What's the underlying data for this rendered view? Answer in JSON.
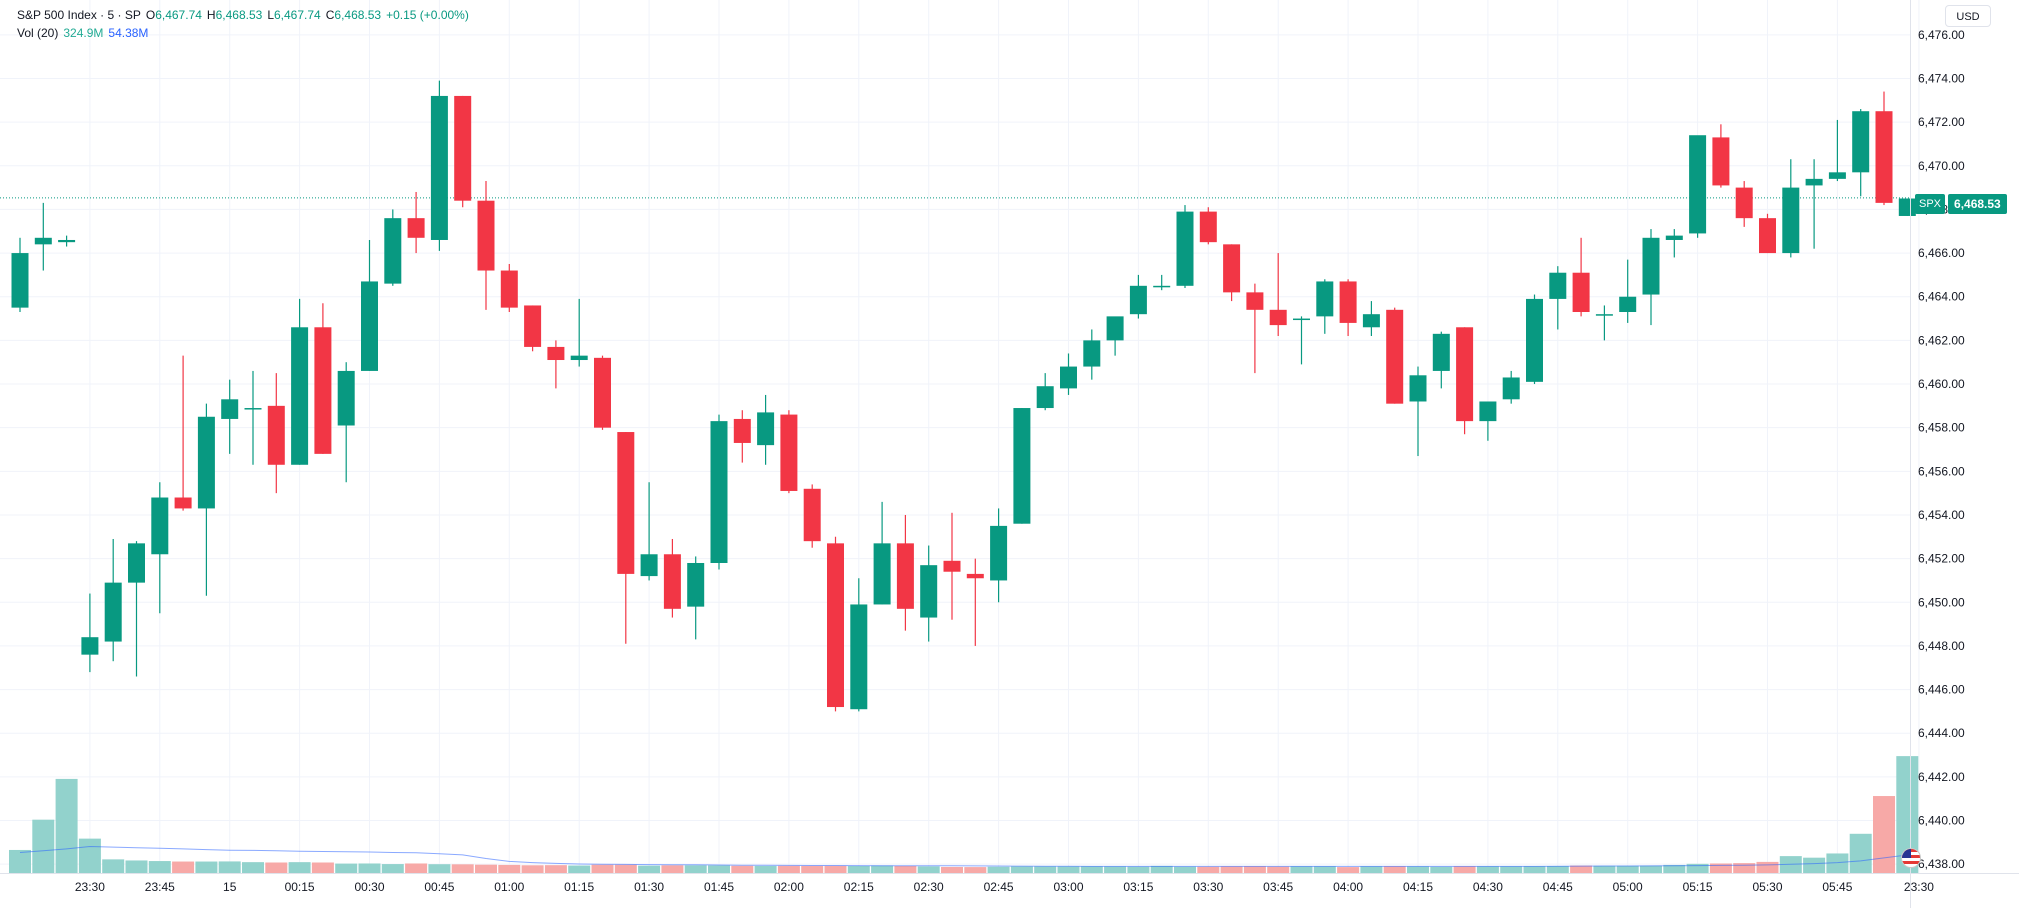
{
  "legend": {
    "title": "S&P 500 Index · 5 · SP",
    "o_label": "O",
    "o_value": "6,467.74",
    "h_label": "H",
    "h_value": "6,468.53",
    "l_label": "L",
    "l_value": "6,467.74",
    "c_label": "C",
    "c_value": "6,468.53",
    "change": "+0.15 (+0.00%)",
    "vol_label": "Vol (20)",
    "vol_value": "324.9M",
    "vol_ma": "54.38M"
  },
  "currency": "USD",
  "last_price": {
    "symbol": "SPX",
    "value": "6,468.53"
  },
  "colors": {
    "up": "#089981",
    "down": "#f23645",
    "vol_up": "#92d2cc",
    "vol_down": "#f7a9a7",
    "vol_ma": "#2962ff"
  },
  "chart_data": {
    "type": "candlestick",
    "y_ticks": [
      "6,438.00",
      "6,440.00",
      "6,442.00",
      "6,444.00",
      "6,446.00",
      "6,448.00",
      "6,450.00",
      "6,452.00",
      "6,454.00",
      "6,456.00",
      "6,458.00",
      "6,460.00",
      "6,462.00",
      "6,464.00",
      "6,466.00",
      "6,468.00",
      "6,470.00",
      "6,472.00",
      "6,474.00",
      "6,476.00"
    ],
    "ylim": [
      6437,
      6477
    ],
    "x_ticks": [
      "23:30",
      "23:45",
      "15",
      "00:15",
      "00:30",
      "00:45",
      "01:00",
      "01:15",
      "01:30",
      "01:45",
      "02:00",
      "02:15",
      "02:30",
      "02:45",
      "03:00",
      "03:15",
      "03:30",
      "03:45",
      "04:00",
      "04:15",
      "04:30",
      "04:45",
      "05:00",
      "05:15",
      "05:30",
      "05:45",
      "23:30"
    ],
    "x_tick_index": [
      3,
      6,
      9,
      12,
      15,
      18,
      21,
      24,
      27,
      30,
      33,
      36,
      39,
      42,
      45,
      48,
      51,
      54,
      57,
      60,
      63,
      66,
      69,
      72,
      75,
      78,
      81.5
    ],
    "last_price_line": 6468.53,
    "candles": [
      {
        "o": 6463.5,
        "h": 6466.7,
        "l": 6463.3,
        "c": 6466.0
      },
      {
        "o": 6466.4,
        "h": 6468.3,
        "l": 6465.2,
        "c": 6466.7
      },
      {
        "o": 6466.5,
        "h": 6466.8,
        "l": 6466.3,
        "c": 6466.6
      },
      {
        "o": 6447.6,
        "h": 6450.4,
        "l": 6446.8,
        "c": 6448.4
      },
      {
        "o": 6448.2,
        "h": 6452.9,
        "l": 6447.3,
        "c": 6450.9
      },
      {
        "o": 6450.9,
        "h": 6452.8,
        "l": 6446.6,
        "c": 6452.7
      },
      {
        "o": 6452.2,
        "h": 6455.5,
        "l": 6449.5,
        "c": 6454.8
      },
      {
        "o": 6454.8,
        "h": 6461.3,
        "l": 6454.2,
        "c": 6454.3
      },
      {
        "o": 6454.3,
        "h": 6459.1,
        "l": 6450.3,
        "c": 6458.5
      },
      {
        "o": 6458.4,
        "h": 6460.2,
        "l": 6456.8,
        "c": 6459.3
      },
      {
        "o": 6458.9,
        "h": 6460.6,
        "l": 6456.3,
        "c": 6458.9
      },
      {
        "o": 6459.0,
        "h": 6460.5,
        "l": 6455.0,
        "c": 6456.3
      },
      {
        "o": 6456.3,
        "h": 6463.9,
        "l": 6456.3,
        "c": 6462.6
      },
      {
        "o": 6462.6,
        "h": 6463.7,
        "l": 6456.8,
        "c": 6456.8
      },
      {
        "o": 6458.1,
        "h": 6461.0,
        "l": 6455.5,
        "c": 6460.6
      },
      {
        "o": 6460.6,
        "h": 6466.6,
        "l": 6460.6,
        "c": 6464.7
      },
      {
        "o": 6464.6,
        "h": 6468.0,
        "l": 6464.5,
        "c": 6467.6
      },
      {
        "o": 6467.6,
        "h": 6468.8,
        "l": 6466.0,
        "c": 6466.7
      },
      {
        "o": 6466.6,
        "h": 6473.9,
        "l": 6466.1,
        "c": 6473.2
      },
      {
        "o": 6473.2,
        "h": 6473.2,
        "l": 6468.1,
        "c": 6468.4
      },
      {
        "o": 6468.4,
        "h": 6469.3,
        "l": 6463.4,
        "c": 6465.2
      },
      {
        "o": 6465.2,
        "h": 6465.5,
        "l": 6463.3,
        "c": 6463.5
      },
      {
        "o": 6463.6,
        "h": 6463.6,
        "l": 6461.5,
        "c": 6461.7
      },
      {
        "o": 6461.7,
        "h": 6462.0,
        "l": 6459.8,
        "c": 6461.1
      },
      {
        "o": 6461.1,
        "h": 6463.9,
        "l": 6460.8,
        "c": 6461.3
      },
      {
        "o": 6461.2,
        "h": 6461.3,
        "l": 6457.9,
        "c": 6458.0
      },
      {
        "o": 6457.8,
        "h": 6457.8,
        "l": 6448.1,
        "c": 6451.3
      },
      {
        "o": 6451.2,
        "h": 6455.5,
        "l": 6451.0,
        "c": 6452.2
      },
      {
        "o": 6452.2,
        "h": 6452.9,
        "l": 6449.3,
        "c": 6449.7
      },
      {
        "o": 6449.8,
        "h": 6452.1,
        "l": 6448.3,
        "c": 6451.8
      },
      {
        "o": 6451.8,
        "h": 6458.6,
        "l": 6451.5,
        "c": 6458.3
      },
      {
        "o": 6458.4,
        "h": 6458.8,
        "l": 6456.4,
        "c": 6457.3
      },
      {
        "o": 6457.2,
        "h": 6459.5,
        "l": 6456.3,
        "c": 6458.7
      },
      {
        "o": 6458.6,
        "h": 6458.8,
        "l": 6455.0,
        "c": 6455.1
      },
      {
        "o": 6455.2,
        "h": 6455.4,
        "l": 6452.5,
        "c": 6452.8
      },
      {
        "o": 6452.7,
        "h": 6453.0,
        "l": 6445.0,
        "c": 6445.2
      },
      {
        "o": 6445.1,
        "h": 6451.1,
        "l": 6445.0,
        "c": 6449.9
      },
      {
        "o": 6449.9,
        "h": 6454.6,
        "l": 6449.9,
        "c": 6452.7
      },
      {
        "o": 6452.7,
        "h": 6454.0,
        "l": 6448.7,
        "c": 6449.7
      },
      {
        "o": 6449.3,
        "h": 6452.6,
        "l": 6448.2,
        "c": 6451.7
      },
      {
        "o": 6451.9,
        "h": 6454.1,
        "l": 6449.2,
        "c": 6451.4
      },
      {
        "o": 6451.3,
        "h": 6452.0,
        "l": 6448.0,
        "c": 6451.1
      },
      {
        "o": 6451.0,
        "h": 6454.3,
        "l": 6450.0,
        "c": 6453.5
      },
      {
        "o": 6453.6,
        "h": 6458.9,
        "l": 6453.6,
        "c": 6458.9
      },
      {
        "o": 6458.9,
        "h": 6460.5,
        "l": 6458.8,
        "c": 6459.9
      },
      {
        "o": 6459.8,
        "h": 6461.4,
        "l": 6459.5,
        "c": 6460.8
      },
      {
        "o": 6460.8,
        "h": 6462.5,
        "l": 6460.2,
        "c": 6462.0
      },
      {
        "o": 6462.0,
        "h": 6462.9,
        "l": 6461.3,
        "c": 6463.1
      },
      {
        "o": 6463.2,
        "h": 6465.0,
        "l": 6463.0,
        "c": 6464.5
      },
      {
        "o": 6464.5,
        "h": 6465.0,
        "l": 6464.3,
        "c": 6464.5
      },
      {
        "o": 6464.5,
        "h": 6468.2,
        "l": 6464.4,
        "c": 6467.9
      },
      {
        "o": 6467.9,
        "h": 6468.1,
        "l": 6466.4,
        "c": 6466.5
      },
      {
        "o": 6466.4,
        "h": 6466.4,
        "l": 6463.8,
        "c": 6464.2
      },
      {
        "o": 6464.2,
        "h": 6464.6,
        "l": 6460.5,
        "c": 6463.4
      },
      {
        "o": 6463.4,
        "h": 6466.0,
        "l": 6462.2,
        "c": 6462.7
      },
      {
        "o": 6463.0,
        "h": 6463.1,
        "l": 6460.9,
        "c": 6463.0
      },
      {
        "o": 6463.1,
        "h": 6464.8,
        "l": 6462.3,
        "c": 6464.7
      },
      {
        "o": 6464.7,
        "h": 6464.8,
        "l": 6462.2,
        "c": 6462.8
      },
      {
        "o": 6462.6,
        "h": 6463.8,
        "l": 6462.2,
        "c": 6463.2
      },
      {
        "o": 6463.4,
        "h": 6463.5,
        "l": 6459.1,
        "c": 6459.1
      },
      {
        "o": 6459.2,
        "h": 6460.8,
        "l": 6456.7,
        "c": 6460.4
      },
      {
        "o": 6460.6,
        "h": 6462.4,
        "l": 6459.8,
        "c": 6462.3
      },
      {
        "o": 6462.6,
        "h": 6462.6,
        "l": 6457.7,
        "c": 6458.3
      },
      {
        "o": 6458.3,
        "h": 6459.1,
        "l": 6457.4,
        "c": 6459.2
      },
      {
        "o": 6459.3,
        "h": 6460.6,
        "l": 6459.1,
        "c": 6460.3
      },
      {
        "o": 6460.1,
        "h": 6464.1,
        "l": 6460.0,
        "c": 6463.9
      },
      {
        "o": 6463.9,
        "h": 6465.4,
        "l": 6462.5,
        "c": 6465.1
      },
      {
        "o": 6465.1,
        "h": 6466.7,
        "l": 6463.1,
        "c": 6463.3
      },
      {
        "o": 6463.2,
        "h": 6463.6,
        "l": 6462.0,
        "c": 6463.2
      },
      {
        "o": 6463.3,
        "h": 6465.7,
        "l": 6462.8,
        "c": 6464.0
      },
      {
        "o": 6464.1,
        "h": 6467.1,
        "l": 6462.7,
        "c": 6466.7
      },
      {
        "o": 6466.6,
        "h": 6467.1,
        "l": 6465.8,
        "c": 6466.8
      },
      {
        "o": 6466.9,
        "h": 6471.3,
        "l": 6466.7,
        "c": 6471.4
      },
      {
        "o": 6471.3,
        "h": 6471.9,
        "l": 6469.0,
        "c": 6469.1
      },
      {
        "o": 6469.0,
        "h": 6469.3,
        "l": 6467.2,
        "c": 6467.6
      },
      {
        "o": 6467.6,
        "h": 6467.8,
        "l": 6466.0,
        "c": 6466.0
      },
      {
        "o": 6466.0,
        "h": 6470.3,
        "l": 6465.8,
        "c": 6469.0
      },
      {
        "o": 6469.1,
        "h": 6470.3,
        "l": 6466.2,
        "c": 6469.4
      },
      {
        "o": 6469.4,
        "h": 6472.1,
        "l": 6469.3,
        "c": 6469.7
      },
      {
        "o": 6469.7,
        "h": 6472.6,
        "l": 6468.6,
        "c": 6472.5
      },
      {
        "o": 6472.5,
        "h": 6473.4,
        "l": 6468.2,
        "c": 6468.3
      },
      {
        "o": 6467.7,
        "h": 6468.5,
        "l": 6467.7,
        "c": 6468.5
      }
    ],
    "volume": {
      "max": 1600,
      "values": [
        191,
        442,
        780,
        285,
        113,
        104,
        99,
        95,
        95,
        96,
        90,
        87,
        90,
        87,
        78,
        79,
        74,
        79,
        73,
        72,
        69,
        67,
        64,
        65,
        62,
        69,
        69,
        61,
        64,
        64,
        63,
        60,
        59,
        60,
        59,
        59,
        58,
        61,
        58,
        55,
        50,
        49,
        52,
        55,
        55,
        55,
        56,
        55,
        53,
        59,
        53,
        52,
        55,
        56,
        53,
        56,
        56,
        49,
        56,
        56,
        55,
        52,
        56,
        56,
        56,
        57,
        58,
        62,
        60,
        60,
        61,
        67,
        76,
        79,
        82,
        92,
        140,
        127,
        162,
        325,
        638,
        969
      ],
      "ma": [
        170,
        184,
        200,
        220,
        215,
        210,
        206,
        200,
        194,
        189,
        187,
        184,
        180,
        178,
        176,
        174,
        170,
        168,
        160,
        150,
        120,
        96,
        86,
        80,
        75,
        72,
        71,
        70,
        69,
        68,
        66,
        65,
        64,
        63,
        62,
        62,
        61,
        60,
        60,
        60,
        60,
        59,
        58,
        57,
        56,
        56,
        55,
        55,
        55,
        55,
        55,
        55,
        55,
        55,
        55,
        55,
        55,
        55,
        55,
        55,
        55,
        55,
        55,
        55,
        55,
        55,
        56,
        57,
        58,
        58,
        59,
        60,
        61,
        63,
        65,
        67,
        72,
        78,
        86,
        100,
        125,
        150
      ]
    }
  }
}
